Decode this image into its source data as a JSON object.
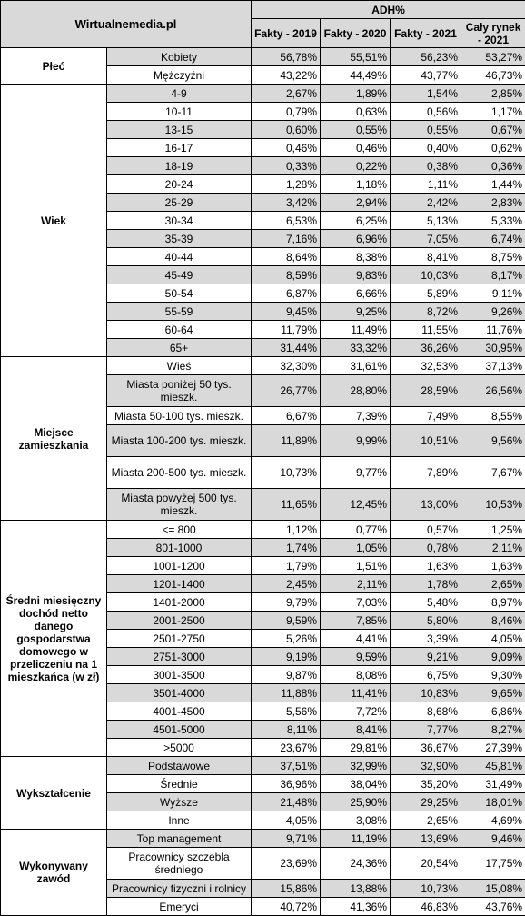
{
  "header": {
    "site": "Wirtualnemedia.pl",
    "metric": "ADH%",
    "columns": [
      "Fakty - 2019",
      "Fakty - 2020",
      "Fakty - 2021",
      "Cały rynek - 2021"
    ]
  },
  "groups": [
    {
      "category": "Płeć",
      "rows": [
        {
          "label": "Kobiety",
          "values": [
            "56,78%",
            "55,51%",
            "56,23%",
            "53,27%"
          ]
        },
        {
          "label": "Mężczyźni",
          "values": [
            "43,22%",
            "44,49%",
            "43,77%",
            "46,73%"
          ]
        }
      ]
    },
    {
      "category": "Wiek",
      "rows": [
        {
          "label": "4-9",
          "values": [
            "2,67%",
            "1,89%",
            "1,54%",
            "2,85%"
          ]
        },
        {
          "label": "10-11",
          "values": [
            "0,79%",
            "0,63%",
            "0,56%",
            "1,17%"
          ]
        },
        {
          "label": "13-15",
          "values": [
            "0,60%",
            "0,55%",
            "0,55%",
            "0,67%"
          ]
        },
        {
          "label": "16-17",
          "values": [
            "0,46%",
            "0,46%",
            "0,40%",
            "0,62%"
          ]
        },
        {
          "label": "18-19",
          "values": [
            "0,33%",
            "0,22%",
            "0,38%",
            "0,36%"
          ]
        },
        {
          "label": "20-24",
          "values": [
            "1,28%",
            "1,18%",
            "1,11%",
            "1,44%"
          ]
        },
        {
          "label": "25-29",
          "values": [
            "3,42%",
            "2,94%",
            "2,42%",
            "2,83%"
          ]
        },
        {
          "label": "30-34",
          "values": [
            "6,53%",
            "6,25%",
            "5,13%",
            "5,33%"
          ]
        },
        {
          "label": "35-39",
          "values": [
            "7,16%",
            "6,96%",
            "7,05%",
            "6,74%"
          ]
        },
        {
          "label": "40-44",
          "values": [
            "8,64%",
            "8,38%",
            "8,41%",
            "8,75%"
          ]
        },
        {
          "label": "45-49",
          "values": [
            "8,59%",
            "9,83%",
            "10,03%",
            "8,17%"
          ]
        },
        {
          "label": "50-54",
          "values": [
            "6,87%",
            "6,66%",
            "5,89%",
            "9,11%"
          ]
        },
        {
          "label": "55-59",
          "values": [
            "9,45%",
            "9,25%",
            "8,72%",
            "9,26%"
          ]
        },
        {
          "label": "60-64",
          "values": [
            "11,79%",
            "11,49%",
            "11,55%",
            "11,76%"
          ]
        },
        {
          "label": "65+",
          "values": [
            "31,44%",
            "33,32%",
            "36,26%",
            "30,95%"
          ]
        }
      ]
    },
    {
      "category": "Miejsce zamieszkania",
      "rows": [
        {
          "label": "Wieś",
          "values": [
            "32,30%",
            "31,61%",
            "32,53%",
            "37,13%"
          ]
        },
        {
          "label": "Miasta poniżej 50 tys. mieszk.",
          "values": [
            "26,77%",
            "28,80%",
            "28,59%",
            "26,56%"
          ]
        },
        {
          "label": "Miasta 50-100 tys. mieszk.",
          "values": [
            "6,67%",
            "7,39%",
            "7,49%",
            "8,55%"
          ]
        },
        {
          "label": "Miasta 100-200 tys. mieszk.",
          "values": [
            "11,89%",
            "9,99%",
            "10,51%",
            "9,56%"
          ]
        },
        {
          "label": "Miasta 200-500 tys. mieszk.",
          "values": [
            "10,73%",
            "9,77%",
            "7,89%",
            "7,67%"
          ]
        },
        {
          "label": "Miasta powyżej 500 tys. mieszk.",
          "values": [
            "11,65%",
            "12,45%",
            "13,00%",
            "10,53%"
          ]
        }
      ]
    },
    {
      "category": "Średni miesięczny dochód netto danego gospodarstwa domowego w przeliczeniu na 1 mieszkańca (w zł)",
      "rows": [
        {
          "label": "<= 800",
          "values": [
            "1,12%",
            "0,77%",
            "0,57%",
            "1,25%"
          ]
        },
        {
          "label": "801-1000",
          "values": [
            "1,74%",
            "1,05%",
            "0,78%",
            "2,11%"
          ]
        },
        {
          "label": "1001-1200",
          "values": [
            "1,79%",
            "1,51%",
            "1,63%",
            "1,63%"
          ]
        },
        {
          "label": "1201-1400",
          "values": [
            "2,45%",
            "2,11%",
            "1,78%",
            "2,65%"
          ]
        },
        {
          "label": "1401-2000",
          "values": [
            "9,79%",
            "7,03%",
            "5,48%",
            "8,97%"
          ]
        },
        {
          "label": "2001-2500",
          "values": [
            "9,59%",
            "7,85%",
            "5,80%",
            "8,46%"
          ]
        },
        {
          "label": "2501-2750",
          "values": [
            "5,26%",
            "4,41%",
            "3,39%",
            "4,05%"
          ]
        },
        {
          "label": "2751-3000",
          "values": [
            "9,19%",
            "9,59%",
            "9,21%",
            "9,09%"
          ]
        },
        {
          "label": "3001-3500",
          "values": [
            "9,87%",
            "8,08%",
            "6,75%",
            "9,30%"
          ]
        },
        {
          "label": "3501-4000",
          "values": [
            "11,88%",
            "11,41%",
            "10,83%",
            "9,65%"
          ]
        },
        {
          "label": "4001-4500",
          "values": [
            "5,56%",
            "7,72%",
            "8,68%",
            "6,86%"
          ]
        },
        {
          "label": "4501-5000",
          "values": [
            "8,11%",
            "8,41%",
            "7,77%",
            "8,27%"
          ]
        },
        {
          "label": ">5000",
          "values": [
            "23,67%",
            "29,81%",
            "36,67%",
            "27,39%"
          ]
        }
      ]
    },
    {
      "category": "Wykształcenie",
      "rows": [
        {
          "label": "Podstawowe",
          "values": [
            "37,51%",
            "32,99%",
            "32,90%",
            "45,81%"
          ]
        },
        {
          "label": "Średnie",
          "values": [
            "36,96%",
            "38,04%",
            "35,20%",
            "31,49%"
          ]
        },
        {
          "label": "Wyższe",
          "values": [
            "21,48%",
            "25,90%",
            "29,25%",
            "18,01%"
          ]
        },
        {
          "label": "Inne",
          "values": [
            "4,05%",
            "3,08%",
            "2,65%",
            "4,69%"
          ]
        }
      ]
    },
    {
      "category": "Wykonywany zawód",
      "rows": [
        {
          "label": "Top management",
          "values": [
            "9,71%",
            "11,19%",
            "13,69%",
            "9,46%"
          ]
        },
        {
          "label": "Pracownicy szczebla średniego",
          "values": [
            "23,69%",
            "24,36%",
            "20,54%",
            "17,75%"
          ]
        },
        {
          "label": "Pracownicy fizyczni i rolnicy",
          "values": [
            "15,86%",
            "13,88%",
            "10,73%",
            "15,08%"
          ]
        },
        {
          "label": "Emeryci",
          "values": [
            "40,72%",
            "41,36%",
            "46,83%",
            "43,76%"
          ]
        }
      ]
    }
  ]
}
